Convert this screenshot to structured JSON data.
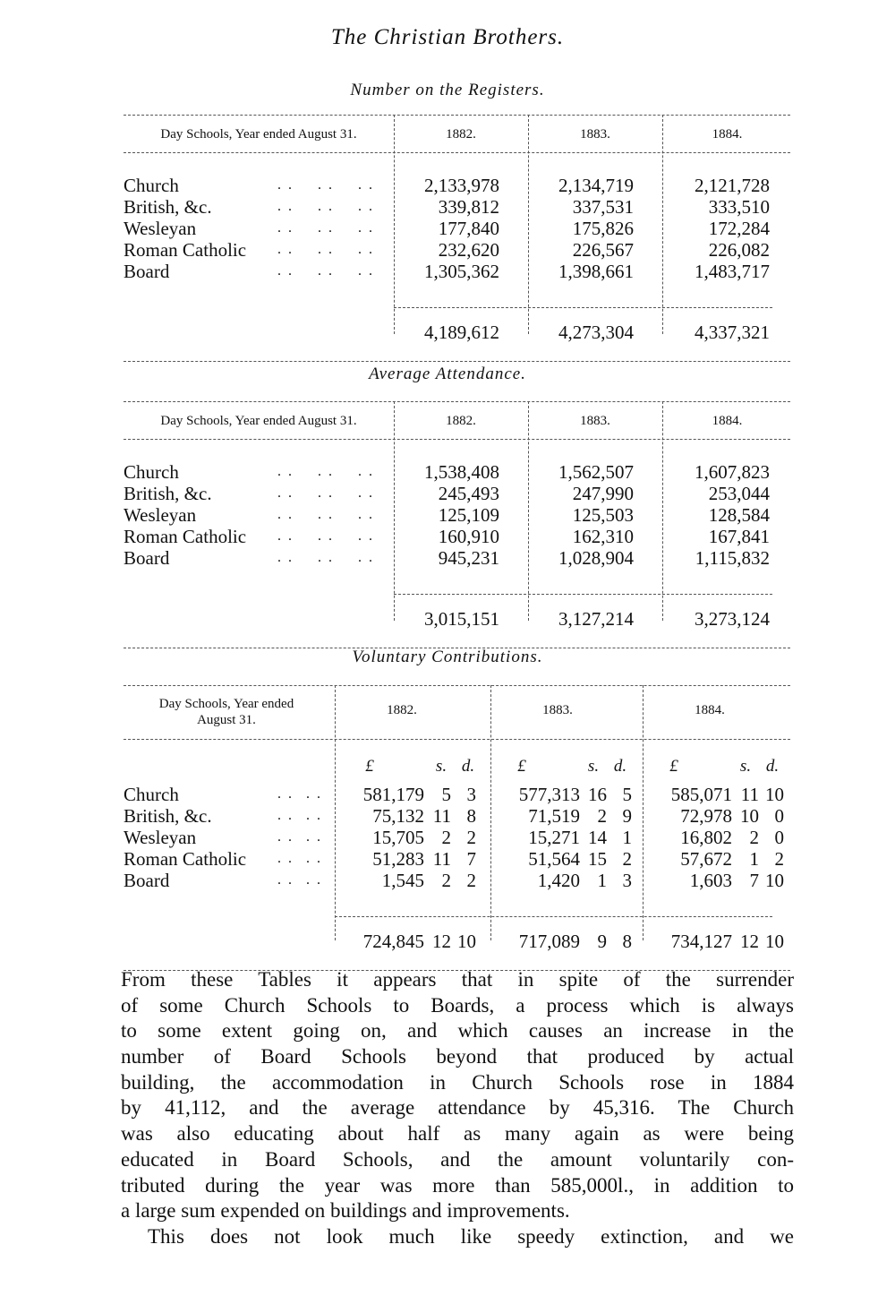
{
  "page_title": "The Christian Brothers.",
  "tables": [
    {
      "caption": "Number on the Registers.",
      "header": "Day Schools, Year ended August 31.",
      "years": [
        "1882.",
        "1883.",
        "1884."
      ],
      "rows": [
        {
          "label": "Church",
          "values": [
            "2,133,978",
            "2,134,719",
            "2,121,728"
          ]
        },
        {
          "label": "British, &c.",
          "values": [
            "339,812",
            "337,531",
            "333,510"
          ]
        },
        {
          "label": "Wesleyan",
          "values": [
            "177,840",
            "175,826",
            "172,284"
          ]
        },
        {
          "label": "Roman Catholic",
          "values": [
            "232,620",
            "226,567",
            "226,082"
          ]
        },
        {
          "label": "Board",
          "values": [
            "1,305,362",
            "1,398,661",
            "1,483,717"
          ]
        }
      ],
      "totals": [
        "4,189,612",
        "4,273,304",
        "4,337,321"
      ]
    },
    {
      "caption": "Average Attendance.",
      "header": "Day Schools, Year ended August 31.",
      "years": [
        "1882.",
        "1883.",
        "1884."
      ],
      "rows": [
        {
          "label": "Church",
          "values": [
            "1,538,408",
            "1,562,507",
            "1,607,823"
          ]
        },
        {
          "label": "British, &c.",
          "values": [
            "245,493",
            "247,990",
            "253,044"
          ]
        },
        {
          "label": "Wesleyan",
          "values": [
            "125,109",
            "125,503",
            "128,584"
          ]
        },
        {
          "label": "Roman Catholic",
          "values": [
            "160,910",
            "162,310",
            "167,841"
          ]
        },
        {
          "label": "Board",
          "values": [
            "945,231",
            "1,028,904",
            "1,115,832"
          ]
        }
      ],
      "totals": [
        "3,015,151",
        "3,127,214",
        "3,273,124"
      ]
    },
    {
      "caption": "Voluntary Contributions.",
      "header_line1": "Day Schools, Year ended",
      "header_line2": "August 31.",
      "years": [
        "1882.",
        "1883.",
        "1884."
      ],
      "units": [
        "£",
        "s.",
        "d."
      ],
      "rows": [
        {
          "label": "Church",
          "values": [
            [
              "581,179",
              "5",
              "3"
            ],
            [
              "577,313",
              "16",
              "5"
            ],
            [
              "585,071",
              "11",
              "10"
            ]
          ]
        },
        {
          "label": "British, &c.",
          "values": [
            [
              "75,132",
              "11",
              "8"
            ],
            [
              "71,519",
              "2",
              "9"
            ],
            [
              "72,978",
              "10",
              "0"
            ]
          ]
        },
        {
          "label": "Wesleyan",
          "values": [
            [
              "15,705",
              "2",
              "2"
            ],
            [
              "15,271",
              "14",
              "1"
            ],
            [
              "16,802",
              "2",
              "0"
            ]
          ]
        },
        {
          "label": "Roman Catholic",
          "values": [
            [
              "51,283",
              "11",
              "7"
            ],
            [
              "51,564",
              "15",
              "2"
            ],
            [
              "57,672",
              "1",
              "2"
            ]
          ]
        },
        {
          "label": "Board",
          "values": [
            [
              "1,545",
              "2",
              "2"
            ],
            [
              "1,420",
              "1",
              "3"
            ],
            [
              "1,603",
              "7",
              "10"
            ]
          ]
        }
      ],
      "totals": [
        [
          "724,845",
          "12",
          "10"
        ],
        [
          "717,089",
          "9",
          "8"
        ],
        [
          "734,127",
          "12",
          "10"
        ]
      ]
    }
  ],
  "leader_dots": ". .",
  "paragraph_lines": [
    "From these Tables it appears that in spite of the surrender",
    "of some Church Schools to Boards, a process which is always",
    "to some extent going on, and which causes an increase in the",
    "number of Board Schools beyond that produced by actual",
    "building, the accommodation in Church Schools rose in 1884",
    "by 41,112, and the average attendance by 45,316. The Church",
    "was also educating about half as many again as were being",
    "educated in Board Schools, and the amount voluntarily con-",
    "tributed during the year was more than 585,000l., in addition to",
    "a large sum expended on buildings and improvements.",
    "This does not look much like speedy extinction, and we"
  ]
}
